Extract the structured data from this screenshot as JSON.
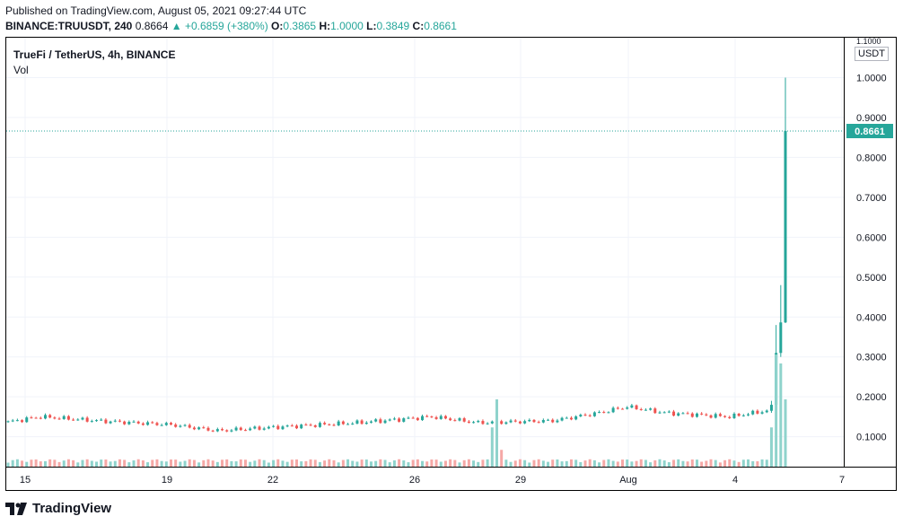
{
  "header": {
    "published": "Published on TradingView.com, August 05, 2021 09:27:44 UTC",
    "symbol": "BINANCE:TRUUSDT, 240",
    "last": "0.8664",
    "change": "▲ +0.6859 (+380%)",
    "o_label": "O:",
    "o_value": "0.3865",
    "h_label": "H:",
    "h_value": "1.0000",
    "l_label": "L:",
    "l_value": "0.3849",
    "c_label": "C:",
    "c_value": "0.8661"
  },
  "legend": {
    "title": "TrueFi / TetherUS, 4h, BINANCE",
    "volume": "Vol"
  },
  "currency": "USDT",
  "footer": {
    "brand": "TradingView",
    "logo_icon": "tradingview-logo-icon"
  },
  "colors": {
    "up": "#26a69a",
    "down": "#ef5350",
    "vol_up": "#8fd3cc",
    "vol_down": "#f5a8a6",
    "grid": "#f0f3fa"
  },
  "chart_data": {
    "type": "candlestick",
    "price_axis": {
      "ticks": [
        0.1,
        0.2,
        0.3,
        0.4,
        0.5,
        0.6,
        0.7,
        0.8,
        0.9,
        1.0
      ],
      "top_label": "1.1000",
      "ylim": [
        0.025,
        1.1
      ]
    },
    "time_axis": {
      "ticks": [
        "15",
        "19",
        "22",
        "26",
        "29",
        "Aug",
        "4",
        "7"
      ]
    },
    "last_price_label": "0.8661",
    "segments": [
      {
        "from": 0.135,
        "to": 0.15,
        "bars": 8
      },
      {
        "from": 0.15,
        "to": 0.14,
        "bars": 12
      },
      {
        "from": 0.14,
        "to": 0.13,
        "bars": 16
      },
      {
        "from": 0.13,
        "to": 0.115,
        "bars": 10
      },
      {
        "from": 0.115,
        "to": 0.125,
        "bars": 14
      },
      {
        "from": 0.125,
        "to": 0.135,
        "bars": 16
      },
      {
        "from": 0.135,
        "to": 0.15,
        "bars": 16
      },
      {
        "from": 0.15,
        "to": 0.135,
        "bars": 10
      },
      {
        "from": 0.135,
        "to": 0.14,
        "bars": 16
      },
      {
        "from": 0.14,
        "to": 0.16,
        "bars": 10
      },
      {
        "from": 0.16,
        "to": 0.175,
        "bars": 6
      },
      {
        "from": 0.175,
        "to": 0.16,
        "bars": 8
      },
      {
        "from": 0.16,
        "to": 0.15,
        "bars": 14
      },
      {
        "from": 0.15,
        "to": 0.165,
        "bars": 8
      }
    ],
    "final_candles": [
      {
        "o": 0.165,
        "h": 0.19,
        "l": 0.16,
        "c": 0.18
      },
      {
        "o": 0.18,
        "h": 0.38,
        "l": 0.175,
        "c": 0.31
      },
      {
        "o": 0.31,
        "h": 0.48,
        "l": 0.3,
        "c": 0.3865
      },
      {
        "o": 0.3865,
        "h": 1.0,
        "l": 0.3849,
        "c": 0.8661
      }
    ],
    "volume": {
      "base": 0.06,
      "spikes": {
        "104": 0.35,
        "105": 0.6,
        "106": 0.15
      },
      "final": [
        0.35,
        1.0,
        0.92,
        0.6
      ]
    }
  }
}
